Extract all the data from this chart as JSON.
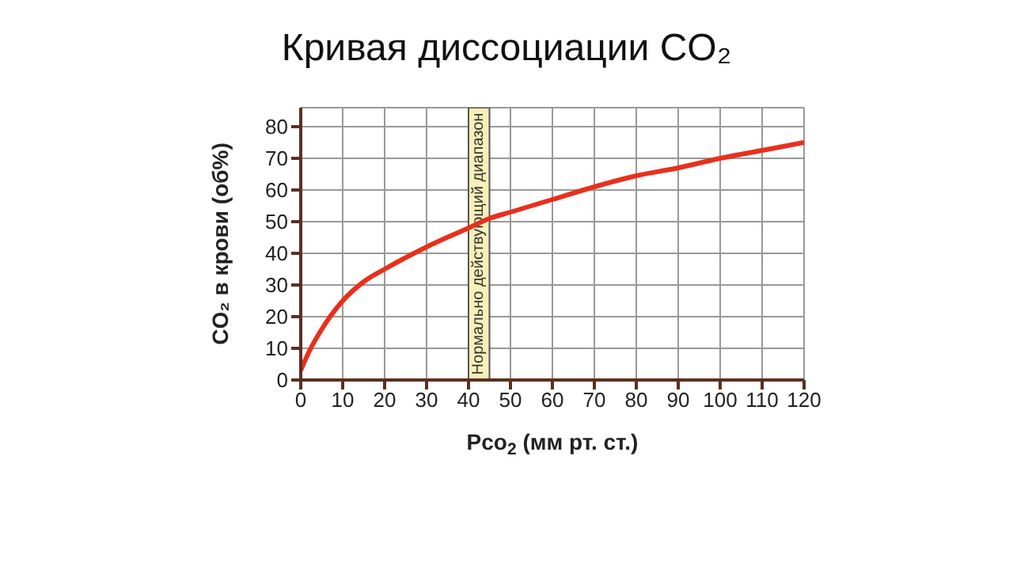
{
  "chart_data": {
    "type": "line",
    "title": "Кривая диссоциации CO₂",
    "xlabel": "Pco$_{2}$ (мм рт. ст.)",
    "ylabel": "CO₂ в крови (об%)",
    "x": [
      0,
      2,
      5,
      7,
      10,
      15,
      20,
      30,
      40,
      45,
      50,
      60,
      70,
      80,
      90,
      100,
      110,
      120
    ],
    "series": [
      {
        "color": "#e8301c",
        "values": [
          3,
          9,
          16,
          20,
          25,
          31,
          35,
          42,
          48,
          51,
          53,
          57,
          61,
          64.5,
          67,
          70,
          72.5,
          75
        ]
      }
    ],
    "xlim": [
      0,
      120
    ],
    "xticks": [
      0,
      10,
      20,
      30,
      40,
      50,
      60,
      70,
      80,
      90,
      100,
      110,
      120
    ],
    "ylim": [
      0,
      86
    ],
    "yticks": [
      0,
      10,
      20,
      30,
      40,
      50,
      60,
      70,
      80
    ],
    "bands": [
      {
        "axis": "x",
        "from": 40,
        "to": 45,
        "label": "Нормально действующий диапазон",
        "color": "#f8f0b8"
      }
    ],
    "grid": true,
    "marker": "none",
    "line_style": "solid"
  }
}
